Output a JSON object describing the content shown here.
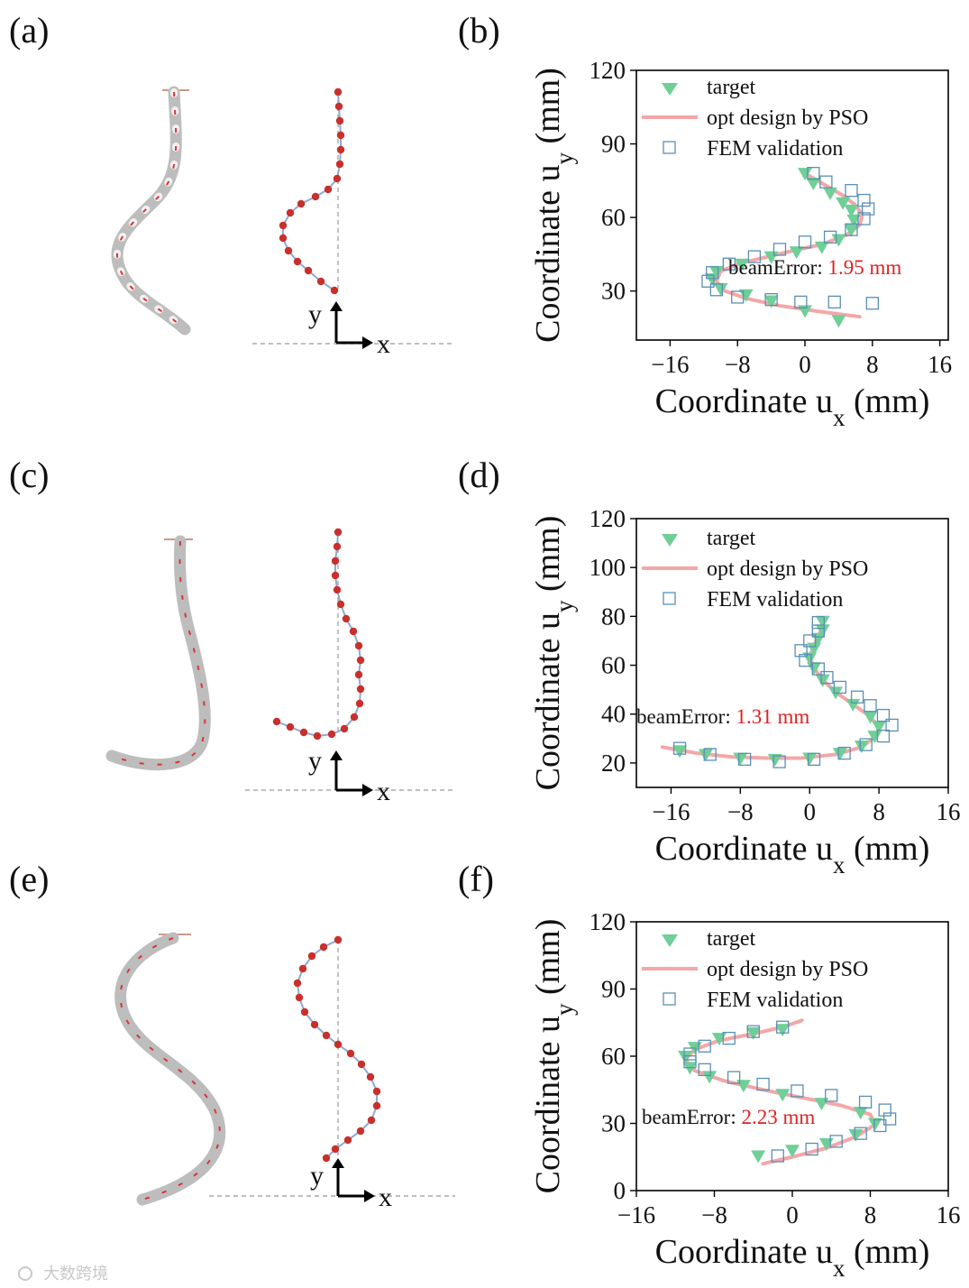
{
  "panel_labels": [
    "(a)",
    "(b)",
    "(c)",
    "(d)",
    "(e)",
    "(f)"
  ],
  "legend": {
    "target": "target",
    "opt": "opt design by PSO",
    "fem": "FEM validation"
  },
  "axis": {
    "xlabel": "Coordinate u",
    "xsub": "x",
    "ylabel": "Coordinate u",
    "ysub": "y",
    "unit": "(mm)"
  },
  "error_prefix": "beamError: ",
  "axes_labels": {
    "x": "x",
    "y": "y"
  },
  "watermark": "大数跨境",
  "colors": {
    "target": "#6fcf97",
    "opt": "#f4a7a7",
    "fem": "#5a8fb5",
    "error": "#e02020",
    "beam": "#c9302c",
    "link": "#8fa8d6"
  },
  "chart_data": [
    {
      "panel": "(b)",
      "type": "scatter",
      "xlim": [
        -20,
        17
      ],
      "ylim": [
        10,
        120
      ],
      "xticks": [
        -16,
        -8,
        0,
        8,
        16
      ],
      "yticks": [
        30,
        60,
        90,
        120
      ],
      "error_value": "1.95 mm",
      "series": [
        {
          "name": "target",
          "points": [
            [
              4,
              18
            ],
            [
              0,
              22
            ],
            [
              -4,
              26
            ],
            [
              -7,
              28.5
            ],
            [
              -10,
              31
            ],
            [
              -11,
              35
            ],
            [
              -10.5,
              38
            ],
            [
              -7.5,
              41
            ],
            [
              -4,
              44
            ],
            [
              -1,
              46
            ],
            [
              2,
              48
            ],
            [
              4,
              51
            ],
            [
              5.5,
              55
            ],
            [
              5.8,
              59
            ],
            [
              5.5,
              63
            ],
            [
              4.5,
              66
            ],
            [
              3,
              70
            ],
            [
              1,
              74
            ],
            [
              0,
              78
            ]
          ]
        },
        {
          "name": "opt design by PSO",
          "points": [
            [
              6.5,
              19.5
            ],
            [
              2,
              21.5
            ],
            [
              -3,
              24
            ],
            [
              -7,
              27
            ],
            [
              -9.5,
              30
            ],
            [
              -10.5,
              34
            ],
            [
              -10,
              38
            ],
            [
              -8,
              41
            ],
            [
              -5,
              43.5
            ],
            [
              -2,
              46
            ],
            [
              2,
              49
            ],
            [
              5,
              53
            ],
            [
              6.5,
              57
            ],
            [
              6.8,
              61
            ],
            [
              6,
              65
            ],
            [
              4.5,
              69
            ],
            [
              2.5,
              73
            ],
            [
              0.5,
              77
            ]
          ]
        },
        {
          "name": "FEM validation",
          "points": [
            [
              8,
              25
            ],
            [
              3.5,
              25.5
            ],
            [
              -0.5,
              25.5
            ],
            [
              -4,
              26.5
            ],
            [
              -8,
              27.5
            ],
            [
              -10.5,
              30.5
            ],
            [
              -11.5,
              34
            ],
            [
              -11,
              37.5
            ],
            [
              -9,
              41
            ],
            [
              -6,
              44
            ],
            [
              -3,
              47
            ],
            [
              0,
              50
            ],
            [
              3,
              52
            ],
            [
              5.5,
              55
            ],
            [
              7,
              59.5
            ],
            [
              7.5,
              63.5
            ],
            [
              7,
              67
            ],
            [
              5.5,
              71
            ],
            [
              2.5,
              74.5
            ],
            [
              1,
              78
            ]
          ]
        }
      ]
    },
    {
      "panel": "(d)",
      "type": "scatter",
      "xlim": [
        -20,
        16
      ],
      "ylim": [
        10,
        120
      ],
      "xticks": [
        -16,
        -8,
        0,
        8,
        16
      ],
      "yticks": [
        20,
        40,
        60,
        80,
        100,
        120
      ],
      "error_value": "1.31 mm",
      "series": [
        {
          "name": "target",
          "points": [
            [
              -15,
              25
            ],
            [
              -12,
              23.5
            ],
            [
              -8,
              22
            ],
            [
              -4,
              21.5
            ],
            [
              0,
              22
            ],
            [
              3.5,
              24
            ],
            [
              6,
              27
            ],
            [
              7.5,
              31
            ],
            [
              8,
              35
            ],
            [
              7,
              39
            ],
            [
              5,
              44
            ],
            [
              3,
              49
            ],
            [
              1.5,
              54
            ],
            [
              0.5,
              59
            ],
            [
              0,
              63
            ],
            [
              0.5,
              67
            ],
            [
              1,
              71
            ],
            [
              1.5,
              74.5
            ],
            [
              1.5,
              78
            ]
          ]
        },
        {
          "name": "opt design by PSO",
          "points": [
            [
              -17,
              26.5
            ],
            [
              -13,
              24
            ],
            [
              -9,
              22.5
            ],
            [
              -5,
              22
            ],
            [
              -1,
              22
            ],
            [
              3,
              23.5
            ],
            [
              6,
              26.5
            ],
            [
              7.5,
              30.5
            ],
            [
              8,
              34.5
            ],
            [
              7,
              39
            ],
            [
              5,
              44
            ],
            [
              3,
              49
            ],
            [
              1.5,
              54
            ],
            [
              0.5,
              59
            ],
            [
              0,
              63.5
            ],
            [
              0.5,
              68
            ],
            [
              1,
              72
            ],
            [
              1.5,
              76
            ]
          ]
        },
        {
          "name": "FEM validation",
          "points": [
            [
              -15,
              26
            ],
            [
              -11.5,
              23.5
            ],
            [
              -7.5,
              21.5
            ],
            [
              -3.5,
              20.5
            ],
            [
              0.5,
              21.5
            ],
            [
              4,
              24
            ],
            [
              6.5,
              27.5
            ],
            [
              8.5,
              31
            ],
            [
              9.5,
              35.5
            ],
            [
              8.5,
              39.5
            ],
            [
              7,
              43.5
            ],
            [
              5.5,
              47
            ],
            [
              3.5,
              51
            ],
            [
              2,
              55
            ],
            [
              1,
              58.5
            ],
            [
              -0.5,
              62
            ],
            [
              -1,
              66
            ],
            [
              0,
              70
            ],
            [
              1,
              74
            ],
            [
              1,
              77.5
            ]
          ]
        }
      ]
    },
    {
      "panel": "(f)",
      "type": "scatter",
      "xlim": [
        -16,
        16
      ],
      "ylim": [
        0,
        120
      ],
      "xticks": [
        -16,
        -8,
        0,
        8,
        16
      ],
      "yticks": [
        0,
        30,
        60,
        90,
        120
      ],
      "error_value": "2.23 mm",
      "series": [
        {
          "name": "target",
          "points": [
            [
              -3.5,
              15.5
            ],
            [
              0,
              18
            ],
            [
              3.5,
              21
            ],
            [
              6.5,
              25
            ],
            [
              8.5,
              30
            ],
            [
              7,
              35
            ],
            [
              3,
              39
            ],
            [
              -1,
              43
            ],
            [
              -5,
              47
            ],
            [
              -8.5,
              51
            ],
            [
              -10.5,
              55
            ],
            [
              -11,
              60
            ],
            [
              -10,
              64
            ],
            [
              -7.5,
              68
            ],
            [
              -4,
              70.5
            ],
            [
              -1,
              72
            ]
          ]
        },
        {
          "name": "opt design by PSO",
          "points": [
            [
              -3,
              12
            ],
            [
              0,
              15
            ],
            [
              3.5,
              19
            ],
            [
              6.5,
              24
            ],
            [
              8.5,
              29.5
            ],
            [
              8,
              34
            ],
            [
              5,
              38
            ],
            [
              1,
              41.5
            ],
            [
              -3,
              45
            ],
            [
              -7,
              49
            ],
            [
              -10,
              53.5
            ],
            [
              -11,
              58.5
            ],
            [
              -10,
              63
            ],
            [
              -7.5,
              67
            ],
            [
              -4,
              70
            ],
            [
              -1,
              73
            ],
            [
              1,
              76
            ]
          ]
        },
        {
          "name": "FEM validation",
          "points": [
            [
              -1.5,
              15.5
            ],
            [
              2,
              18.5
            ],
            [
              4.5,
              22
            ],
            [
              7,
              25.5
            ],
            [
              9,
              29
            ],
            [
              10,
              32
            ],
            [
              9.5,
              36
            ],
            [
              7.5,
              39.5
            ],
            [
              4,
              42.5
            ],
            [
              0.5,
              44.5
            ],
            [
              -3,
              47.5
            ],
            [
              -6,
              50.5
            ],
            [
              -9,
              54
            ],
            [
              -10.5,
              57.5
            ],
            [
              -10.5,
              61
            ],
            [
              -9,
              64.5
            ],
            [
              -6.5,
              68
            ],
            [
              -4,
              71
            ],
            [
              -1,
              73
            ]
          ]
        }
      ]
    }
  ]
}
